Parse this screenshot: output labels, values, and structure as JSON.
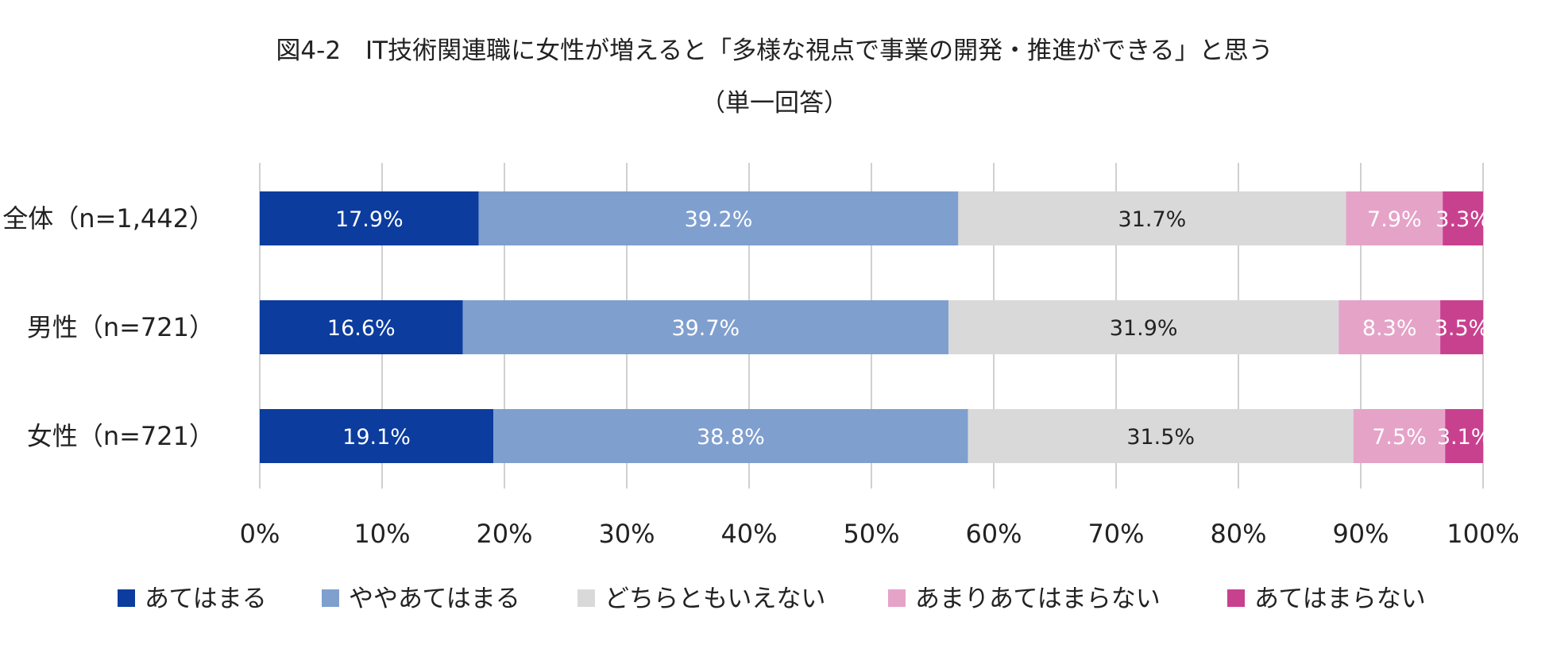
{
  "chart_data": {
    "type": "bar",
    "orientation": "horizontal",
    "stacked": true,
    "title": "図4-2　IT技術関連職に女性が増えると「多様な視点で事業の開発・推進ができる」と思う",
    "subtitle": "（単一回答）",
    "xlabel": "",
    "ylabel": "",
    "xlim": [
      0,
      100
    ],
    "xticks": [
      "0%",
      "10%",
      "20%",
      "30%",
      "40%",
      "50%",
      "60%",
      "70%",
      "80%",
      "90%",
      "100%"
    ],
    "grid": true,
    "legend_position": "bottom",
    "categories": [
      "全体（n=1,442）",
      "男性（n=721）",
      "女性（n=721）"
    ],
    "series": [
      {
        "name": "あてはまる",
        "color": "#0b3c9e",
        "label_color": "#ffffff",
        "values": [
          17.9,
          16.6,
          19.1
        ],
        "labels": [
          "17.9%",
          "16.6%",
          "19.1%"
        ]
      },
      {
        "name": "ややあてはまる",
        "color": "#7f9fcf",
        "label_color": "#ffffff",
        "values": [
          39.2,
          39.7,
          38.8
        ],
        "labels": [
          "39.2%",
          "39.7%",
          "38.8%"
        ]
      },
      {
        "name": "どちらともいえない",
        "color": "#d9d9d9",
        "label_color": "#222222",
        "values": [
          31.7,
          31.9,
          31.5
        ],
        "labels": [
          "31.7%",
          "31.9%",
          "31.5%"
        ]
      },
      {
        "name": "あまりあてはまらない",
        "color": "#e5a3c8",
        "label_color": "#ffffff",
        "values": [
          7.9,
          8.3,
          7.5
        ],
        "labels": [
          "7.9%",
          "8.3%",
          "7.5%"
        ]
      },
      {
        "name": "あてはまらない",
        "color": "#c8418f",
        "label_color": "#ffffff",
        "values": [
          3.3,
          3.5,
          3.1
        ],
        "labels": [
          "3.3%",
          "3.5%",
          "3.1%"
        ]
      }
    ]
  }
}
